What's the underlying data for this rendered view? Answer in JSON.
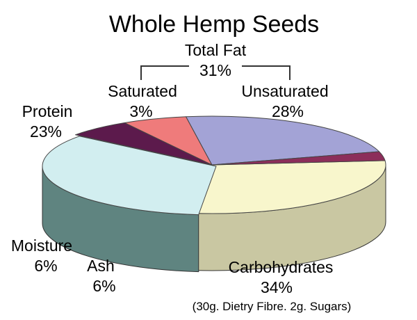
{
  "chart_data": {
    "type": "pie",
    "title": "Whole Hemp Seeds",
    "style": "3d-exploded-depth",
    "group": {
      "label": "Total Fat",
      "value_text": "31%",
      "value": 31,
      "members": [
        "Saturated",
        "Unsaturated"
      ]
    },
    "slices": [
      {
        "label": "Unsaturated",
        "value": 28,
        "value_text": "28%",
        "color": "#f8f6cc",
        "side_color": "#c9c7a2"
      },
      {
        "label": "Carbohydrates",
        "value": 34,
        "value_text": "34%",
        "color": "#d2eef0",
        "side_color": "#5f8480",
        "note": "(30g. Dietry Fibre. 2g. Sugars)"
      },
      {
        "label": "Ash",
        "value": 6,
        "value_text": "6%",
        "color": "#5c1a4c",
        "side_color": "#360a2c"
      },
      {
        "label": "Moisture",
        "value": 6,
        "value_text": "6%",
        "color": "#ef7b7b",
        "side_color": "#8c4038"
      },
      {
        "label": "Protein",
        "value": 23,
        "value_text": "23%",
        "color": "#a3a3d6",
        "side_color": "#5f5f8c"
      },
      {
        "label": "Saturated",
        "value": 3,
        "value_text": "3%",
        "color": "#8c2e5a",
        "side_color": "#5a1a38"
      }
    ]
  }
}
